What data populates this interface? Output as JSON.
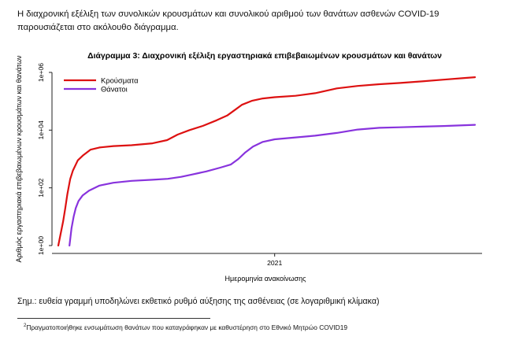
{
  "document": {
    "intro_text": "Η διαχρονική εξέλιξη των συνολικών κρουσμάτων και συνολικού αριθμού των θανάτων ασθενών COVID-19 παρουσιάζεται στο ακόλουθο διάγραμμα.",
    "note_text": "Σημ.: ευθεία γραμμή υποδηλώνει εκθετικό ρυθμό αύξησης της ασθένειας (σε λογαριθμική κλίμακα)",
    "footnote_marker": "2",
    "footnote_text": "Πραγματοποιήθηκε ενσωμάτωση θανάτων που καταγράφηκαν με καθυστέρηση στο Εθνικό Μητρώο COVID19"
  },
  "chart_data": {
    "type": "line",
    "title": "Διάγραμμα 3: Διαχρονική εξέλιξη εργαστηριακά επιβεβαιωμένων κρουσμάτων και θανάτων",
    "xlabel": "Ημερομηνία ανακοίνωσης",
    "ylabel": "Αριθμός εργαστηριακά επιβεβαιωμένων κρουσμάτων και θανάτων",
    "y_scale": "log10",
    "ylim": [
      1,
      1000000
    ],
    "y_ticks": [
      {
        "value": 1,
        "label": "1e+00"
      },
      {
        "value": 100,
        "label": "1e+02"
      },
      {
        "value": 10000,
        "label": "1e+04"
      },
      {
        "value": 1000000,
        "label": "1e+06"
      }
    ],
    "x_range": [
      "2020-02-26",
      "2021-10-15"
    ],
    "x_ticks": [
      {
        "value": "2021-01-01",
        "label": "2021"
      }
    ],
    "grid": false,
    "legend_position": "top-left",
    "series": [
      {
        "name": "Κρούσματα",
        "color": "#dd1111",
        "points": [
          [
            "2020-02-26",
            1
          ],
          [
            "2020-03-01",
            3
          ],
          [
            "2020-03-04",
            7
          ],
          [
            "2020-03-07",
            20
          ],
          [
            "2020-03-10",
            60
          ],
          [
            "2020-03-14",
            200
          ],
          [
            "2020-03-18",
            400
          ],
          [
            "2020-03-25",
            900
          ],
          [
            "2020-04-01",
            1300
          ],
          [
            "2020-04-12",
            2100
          ],
          [
            "2020-04-25",
            2500
          ],
          [
            "2020-05-15",
            2800
          ],
          [
            "2020-06-10",
            3000
          ],
          [
            "2020-07-10",
            3500
          ],
          [
            "2020-07-31",
            4500
          ],
          [
            "2020-08-15",
            7000
          ],
          [
            "2020-09-01",
            10000
          ],
          [
            "2020-09-20",
            14000
          ],
          [
            "2020-10-10",
            22000
          ],
          [
            "2020-10-25",
            32000
          ],
          [
            "2020-11-05",
            50000
          ],
          [
            "2020-11-15",
            75000
          ],
          [
            "2020-11-30",
            105000
          ],
          [
            "2020-12-15",
            125000
          ],
          [
            "2021-01-01",
            138000
          ],
          [
            "2021-01-31",
            155000
          ],
          [
            "2021-02-28",
            190000
          ],
          [
            "2021-03-31",
            280000
          ],
          [
            "2021-04-30",
            340000
          ],
          [
            "2021-05-31",
            390000
          ],
          [
            "2021-06-30",
            430000
          ],
          [
            "2021-07-31",
            490000
          ],
          [
            "2021-08-31",
            560000
          ],
          [
            "2021-09-30",
            640000
          ],
          [
            "2021-10-15",
            680000
          ]
        ]
      },
      {
        "name": "Θάνατοι",
        "color": "#8833dd",
        "points": [
          [
            "2020-03-13",
            1
          ],
          [
            "2020-03-16",
            4
          ],
          [
            "2020-03-19",
            10
          ],
          [
            "2020-03-22",
            20
          ],
          [
            "2020-03-26",
            35
          ],
          [
            "2020-04-01",
            55
          ],
          [
            "2020-04-10",
            80
          ],
          [
            "2020-04-25",
            120
          ],
          [
            "2020-05-15",
            150
          ],
          [
            "2020-06-10",
            175
          ],
          [
            "2020-07-10",
            190
          ],
          [
            "2020-08-01",
            205
          ],
          [
            "2020-08-20",
            240
          ],
          [
            "2020-09-05",
            290
          ],
          [
            "2020-09-25",
            370
          ],
          [
            "2020-10-15",
            500
          ],
          [
            "2020-10-30",
            640
          ],
          [
            "2020-11-10",
            1000
          ],
          [
            "2020-11-20",
            1700
          ],
          [
            "2020-12-01",
            2700
          ],
          [
            "2020-12-15",
            3900
          ],
          [
            "2021-01-01",
            4800
          ],
          [
            "2021-01-31",
            5600
          ],
          [
            "2021-02-28",
            6400
          ],
          [
            "2021-03-31",
            8000
          ],
          [
            "2021-04-30",
            10500
          ],
          [
            "2021-05-31",
            12000
          ],
          [
            "2021-06-30",
            12600
          ],
          [
            "2021-07-31",
            13200
          ],
          [
            "2021-08-31",
            13900
          ],
          [
            "2021-09-30",
            14800
          ],
          [
            "2021-10-15",
            15300
          ]
        ]
      }
    ]
  }
}
